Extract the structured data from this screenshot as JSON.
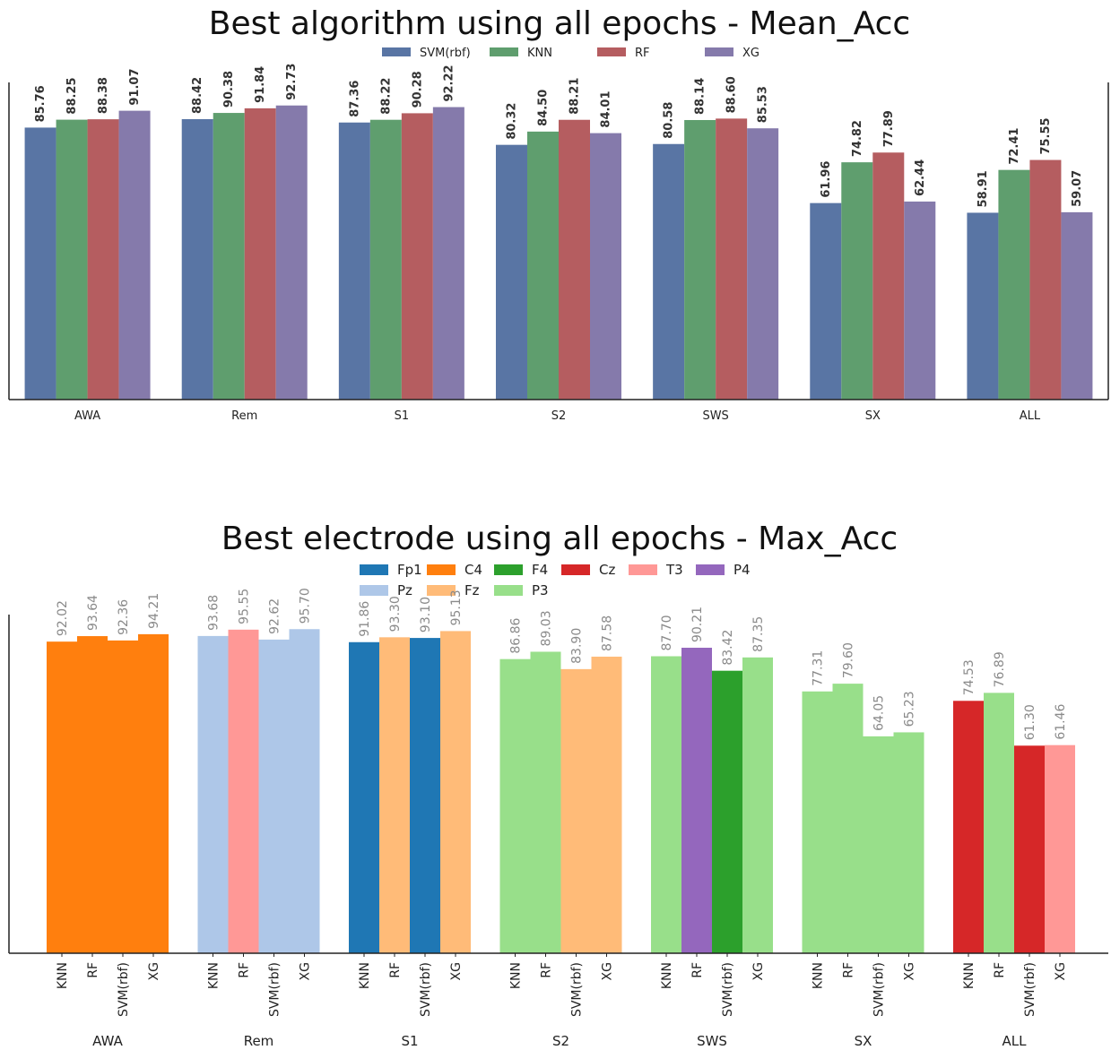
{
  "chart_data": [
    {
      "type": "bar",
      "title": "Best algorithm using all epochs - Mean_Acc",
      "categories": [
        "AWA",
        "Rem",
        "S1",
        "S2",
        "SWS",
        "SX",
        "ALL"
      ],
      "series": [
        {
          "name": "SVM(rbf)",
          "color": "#5975a4",
          "values": [
            85.76,
            88.42,
            87.36,
            80.32,
            80.58,
            61.96,
            58.91
          ]
        },
        {
          "name": "KNN",
          "color": "#5f9e6e",
          "values": [
            88.25,
            90.38,
            88.22,
            84.5,
            88.14,
            74.82,
            72.41
          ]
        },
        {
          "name": "RF",
          "color": "#b55d60",
          "values": [
            88.38,
            91.84,
            90.28,
            88.21,
            88.6,
            77.89,
            75.55
          ]
        },
        {
          "name": "XG",
          "color": "#857aab",
          "values": [
            91.07,
            92.73,
            92.22,
            84.01,
            85.53,
            62.44,
            59.07
          ]
        }
      ],
      "legend_position": "top-center",
      "grid": false
    },
    {
      "type": "bar",
      "title": "Best electrode using all epochs - Max_Acc",
      "legend": [
        {
          "name": "Fp1",
          "color": "#1f77b4"
        },
        {
          "name": "C4",
          "color": "#ff7f0e"
        },
        {
          "name": "F4",
          "color": "#2ca02c"
        },
        {
          "name": "Cz",
          "color": "#d62728"
        },
        {
          "name": "T3",
          "color": "#ff9896"
        },
        {
          "name": "P4",
          "color": "#9467bd"
        },
        {
          "name": "Pz",
          "color": "#aec7e8"
        },
        {
          "name": "Fz",
          "color": "#ffbb78"
        },
        {
          "name": "P3",
          "color": "#98df8a"
        }
      ],
      "groups": [
        {
          "category": "AWA",
          "bars": [
            {
              "model": "KNN",
              "value": 92.02,
              "electrode": "C4"
            },
            {
              "model": "RF",
              "value": 93.64,
              "electrode": "C4"
            },
            {
              "model": "SVM(rbf)",
              "value": 92.36,
              "electrode": "C4"
            },
            {
              "model": "XG",
              "value": 94.21,
              "electrode": "C4"
            }
          ]
        },
        {
          "category": "Rem",
          "bars": [
            {
              "model": "KNN",
              "value": 93.68,
              "electrode": "Pz"
            },
            {
              "model": "RF",
              "value": 95.55,
              "electrode": "T3"
            },
            {
              "model": "SVM(rbf)",
              "value": 92.62,
              "electrode": "Pz"
            },
            {
              "model": "XG",
              "value": 95.7,
              "electrode": "Pz"
            }
          ]
        },
        {
          "category": "S1",
          "bars": [
            {
              "model": "KNN",
              "value": 91.86,
              "electrode": "Fp1"
            },
            {
              "model": "RF",
              "value": 93.3,
              "electrode": "Fz"
            },
            {
              "model": "SVM(rbf)",
              "value": 93.1,
              "electrode": "Fp1"
            },
            {
              "model": "XG",
              "value": 95.13,
              "electrode": "Fz"
            }
          ]
        },
        {
          "category": "S2",
          "bars": [
            {
              "model": "KNN",
              "value": 86.86,
              "electrode": "P3"
            },
            {
              "model": "RF",
              "value": 89.03,
              "electrode": "P3"
            },
            {
              "model": "SVM(rbf)",
              "value": 83.9,
              "electrode": "Fz"
            },
            {
              "model": "XG",
              "value": 87.58,
              "electrode": "Fz"
            }
          ]
        },
        {
          "category": "SWS",
          "bars": [
            {
              "model": "KNN",
              "value": 87.7,
              "electrode": "P3"
            },
            {
              "model": "RF",
              "value": 90.21,
              "electrode": "P4"
            },
            {
              "model": "SVM(rbf)",
              "value": 83.42,
              "electrode": "F4"
            },
            {
              "model": "XG",
              "value": 87.35,
              "electrode": "P3"
            }
          ]
        },
        {
          "category": "SX",
          "bars": [
            {
              "model": "KNN",
              "value": 77.31,
              "electrode": "P3"
            },
            {
              "model": "RF",
              "value": 79.6,
              "electrode": "P3"
            },
            {
              "model": "SVM(rbf)",
              "value": 64.05,
              "electrode": "P3"
            },
            {
              "model": "XG",
              "value": 65.23,
              "electrode": "P3"
            }
          ]
        },
        {
          "category": "ALL",
          "bars": [
            {
              "model": "KNN",
              "value": 74.53,
              "electrode": "Cz"
            },
            {
              "model": "RF",
              "value": 76.89,
              "electrode": "P3"
            },
            {
              "model": "SVM(rbf)",
              "value": 61.3,
              "electrode": "Cz"
            },
            {
              "model": "XG",
              "value": 61.46,
              "electrode": "T3"
            }
          ]
        }
      ],
      "legend_position": "top-center",
      "grid": false
    }
  ]
}
